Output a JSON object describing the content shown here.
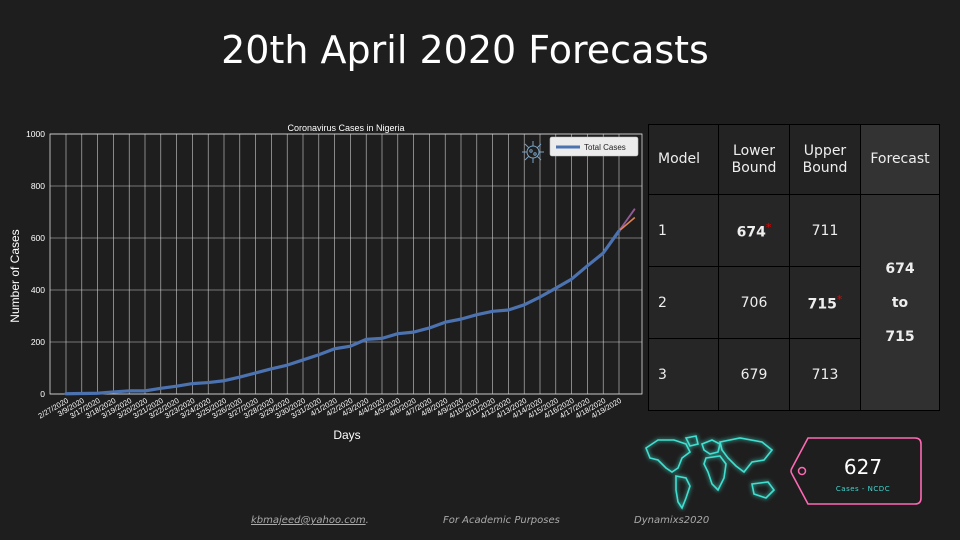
{
  "slide_title": "20th April 2020 Forecasts",
  "chart_data": {
    "type": "line",
    "title": "Coronavirus Cases in Nigeria",
    "xlabel": "Days",
    "ylabel": "Number of Cases",
    "ylim": [
      0,
      1000
    ],
    "yticks": [
      0,
      200,
      400,
      600,
      800,
      1000
    ],
    "grid": true,
    "legend_position": "top-right",
    "categories": [
      "2/27/2020",
      "3/9/2020",
      "3/17/2020",
      "3/18/2020",
      "3/19/2020",
      "3/20/2020",
      "3/21/2020",
      "3/22/2020",
      "3/23/2020",
      "3/24/2020",
      "3/25/2020",
      "3/26/2020",
      "3/27/2020",
      "3/28/2020",
      "3/29/2020",
      "3/30/2020",
      "3/31/2020",
      "4/1/2020",
      "4/2/2020",
      "4/3/2020",
      "4/4/2020",
      "4/5/2020",
      "4/6/2020",
      "4/7/2020",
      "4/8/2020",
      "4/9/2020",
      "4/10/2020",
      "4/11/2020",
      "4/12/2020",
      "4/13/2020",
      "4/14/2020",
      "4/15/2020",
      "4/16/2020",
      "4/17/2020",
      "4/18/2020",
      "4/19/2020"
    ],
    "series": [
      {
        "name": "Total Cases",
        "color": "#4c72b0",
        "values": [
          1,
          2,
          3,
          8,
          12,
          12,
          22,
          30,
          40,
          44,
          51,
          65,
          81,
          97,
          111,
          131,
          151,
          174,
          184,
          210,
          214,
          232,
          238,
          254,
          276,
          288,
          305,
          318,
          323,
          343,
          373,
          407,
          442,
          493,
          542,
          627
        ]
      }
    ],
    "forecasts": [
      {
        "color": "#c44e52",
        "x": [
          "4/19/2020",
          "4/20/2020"
        ],
        "values": [
          627,
          711
        ]
      },
      {
        "color": "#8c5ca0",
        "x": [
          "4/19/2020",
          "4/20/2020"
        ],
        "values": [
          627,
          713
        ]
      },
      {
        "color": "#dd8452",
        "x": [
          "4/19/2020",
          "4/20/2020"
        ],
        "values": [
          627,
          679
        ]
      }
    ]
  },
  "table": {
    "headers": {
      "model": "Model",
      "lower": "Lower Bound",
      "upper": "Upper Bound",
      "forecast": "Forecast"
    },
    "rows": [
      {
        "model": "1",
        "lower": "674",
        "upper": "711"
      },
      {
        "model": "2",
        "lower": "706",
        "upper": "715"
      },
      {
        "model": "3",
        "lower": "679",
        "upper": "713"
      }
    ],
    "star": "*",
    "forecast_from": "674",
    "forecast_to_word": "to",
    "forecast_to": "715"
  },
  "tag": {
    "value": "627",
    "caption": "Cases - NCDC",
    "color": "#ff69b4"
  },
  "map": {
    "color": "#3fe0d0"
  },
  "footer": {
    "email": "kbmajeed@yahoo.com",
    "email_suffix": ".",
    "academic": "For Academic Purposes",
    "brand": "Dynamixs2020"
  },
  "icons": {
    "virus": "virus-icon",
    "map": "world-map-icon"
  }
}
